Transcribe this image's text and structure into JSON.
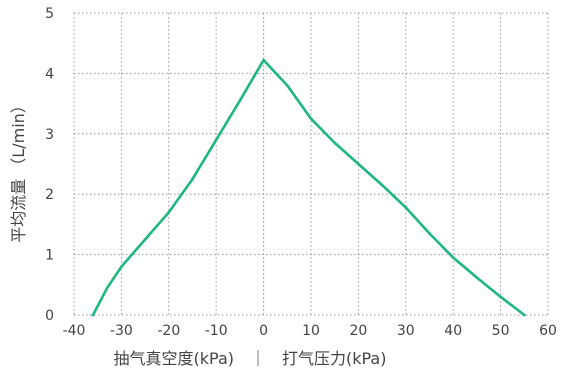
{
  "chart_data": {
    "type": "line",
    "title": "",
    "xlabel": "抽气真空度(kPa)　｜　打气压力(kPa)",
    "ylabel": "平均流量 （L/min）",
    "xlim": [
      -40,
      60
    ],
    "ylim": [
      0,
      5
    ],
    "x_ticks": [
      -40,
      -30,
      -20,
      -10,
      0,
      10,
      20,
      30,
      40,
      50,
      60
    ],
    "y_ticks": [
      0,
      1,
      2,
      3,
      4,
      5
    ],
    "grid": true,
    "grid_style": "dotted",
    "line_color": "#1db87e",
    "grid_color": "#9a9a9a",
    "series": [
      {
        "x": [
          -36,
          -33,
          -30,
          -25,
          -20,
          -15,
          -10,
          -5,
          0,
          5,
          10,
          15,
          20,
          25,
          30,
          35,
          40,
          45,
          50,
          55
        ],
        "values": [
          0.0,
          0.45,
          0.8,
          1.25,
          1.7,
          2.25,
          2.9,
          3.55,
          4.22,
          3.8,
          3.25,
          2.85,
          2.5,
          2.15,
          1.78,
          1.35,
          0.95,
          0.62,
          0.3,
          0.0
        ]
      }
    ]
  }
}
